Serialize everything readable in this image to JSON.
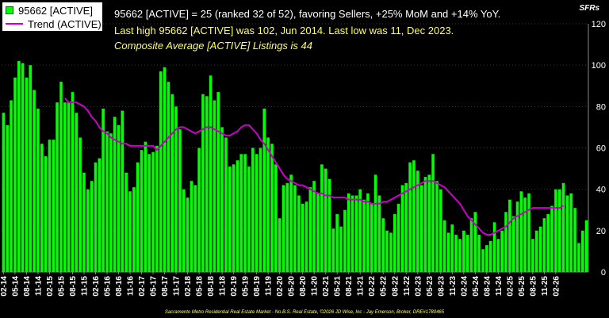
{
  "header": {
    "line1": "95662 [ACTIVE] = 25 (ranked 32 of 52), favoring Sellers, +25% MoM and +14% YoY.",
    "line2": "Last high 95662 [ACTIVE] was 102, Jun 2014. Last low was 11, Dec 2023.",
    "line3": "Composite Average [ACTIVE] Listings is 44",
    "unit": "SFRs"
  },
  "legend": {
    "bars_label": "95662 [ACTIVE]",
    "trend_label": "Trend (ACTIVE)"
  },
  "footer": "Sacramento Metro Residential Real Estate Market - No.B.S. Real Estate, ©2026 JD Wise, Inc - Jay Emerson, Broker, DRE#1780465",
  "colors": {
    "background": "#000000",
    "bar": "#00ff00",
    "bar_edge": "#007700",
    "trend": "#cc00cc",
    "axis_text": "#ffffff",
    "header_text": "#ffffff",
    "accent_text": "#ffff66"
  },
  "chart_data": {
    "type": "bar",
    "start": "02-14",
    "ylim": [
      0,
      120
    ],
    "yticks": [
      0,
      20,
      40,
      60,
      80,
      100,
      120
    ],
    "xtick_labels": [
      "02-14",
      "05-14",
      "08-14",
      "11-14",
      "02-15",
      "05-15",
      "08-15",
      "11-15",
      "02-16",
      "05-16",
      "08-16",
      "11-16",
      "02-17",
      "05-17",
      "08-17",
      "11-17",
      "02-18",
      "05-18",
      "08-18",
      "11-18",
      "02-19",
      "05-19",
      "08-19",
      "11-19",
      "02-20",
      "05-20",
      "08-20",
      "11-20",
      "02-21",
      "05-21",
      "08-21",
      "11-21",
      "02-22",
      "05-22",
      "08-22",
      "11-22",
      "02-23",
      "05-23",
      "08-23",
      "11-23",
      "02-24",
      "05-24",
      "08-24",
      "11-24",
      "02-25",
      "05-25",
      "08-25",
      "11-25",
      "02-26"
    ],
    "series": [
      {
        "name": "95662 [ACTIVE]",
        "kind": "bar",
        "values": [
          77,
          71,
          83,
          94,
          102,
          101,
          94,
          100,
          88,
          79,
          62,
          56,
          64,
          64,
          82,
          92,
          82,
          82,
          87,
          77,
          65,
          48,
          40,
          44,
          53,
          55,
          79,
          68,
          67,
          75,
          71,
          78,
          48,
          39,
          41,
          53,
          59,
          63,
          57,
          58,
          61,
          97,
          99,
          92,
          86,
          80,
          69,
          40,
          36,
          44,
          42,
          60,
          86,
          85,
          95,
          83,
          87,
          70,
          65,
          51,
          52,
          54,
          57,
          57,
          51,
          60,
          57,
          60,
          79,
          65,
          62,
          52,
          26,
          42,
          43,
          47,
          42,
          37,
          33,
          34,
          41,
          44,
          38,
          52,
          50,
          45,
          21,
          28,
          22,
          30,
          38,
          37,
          37,
          40,
          35,
          38,
          33,
          47,
          37,
          26,
          20,
          19,
          28,
          33,
          42,
          43,
          53,
          54,
          49,
          42,
          46,
          47,
          57,
          44,
          40,
          25,
          19,
          23,
          18,
          16,
          20,
          18,
          26,
          29,
          18,
          11,
          13,
          15,
          24,
          16,
          20,
          29,
          35,
          27,
          34,
          39,
          36,
          38,
          16,
          20,
          22,
          26,
          28,
          32,
          40,
          40,
          43,
          37,
          38,
          31,
          14,
          20,
          25
        ]
      },
      {
        "name": "Trend (ACTIVE)",
        "kind": "line",
        "start_index": 16,
        "values": [
          84,
          82,
          82,
          82,
          81,
          80,
          78,
          75,
          73,
          70,
          68,
          67,
          65,
          64,
          63,
          62,
          62,
          61,
          61,
          61,
          61,
          61,
          61,
          61,
          59,
          61,
          63,
          65,
          67,
          69,
          70,
          70,
          69,
          68,
          67,
          68,
          69,
          70,
          70,
          69,
          68,
          67,
          66,
          66,
          67,
          68,
          70,
          71,
          71,
          69,
          67,
          64,
          62,
          59,
          56,
          53,
          50,
          47,
          45,
          44,
          43,
          42,
          42,
          41,
          40,
          39,
          38,
          38,
          37,
          37,
          36,
          36,
          36,
          36,
          35,
          35,
          35,
          35,
          34,
          34,
          33,
          33,
          33,
          34,
          34,
          35,
          36,
          37,
          38,
          39,
          40,
          41,
          42,
          43,
          44,
          44,
          44,
          43,
          42,
          41,
          39,
          37,
          35,
          33,
          30,
          27,
          25,
          23,
          21,
          19,
          18,
          18,
          19,
          20,
          21,
          22,
          24,
          26,
          27,
          28,
          29,
          30,
          31,
          31,
          31,
          31,
          31,
          31,
          31,
          31,
          32
        ]
      }
    ]
  }
}
